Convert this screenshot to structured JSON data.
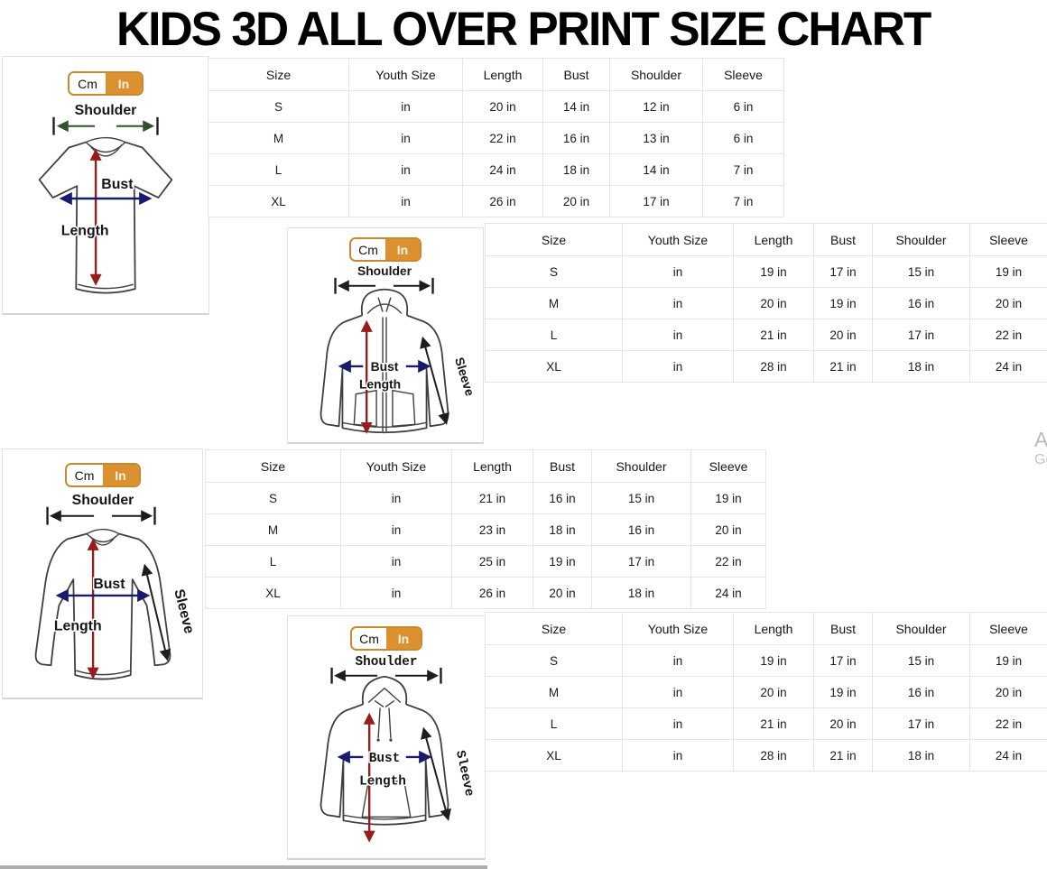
{
  "title": "KIDS 3D ALL OVER PRINT SIZE CHART",
  "unit_toggle": {
    "cm": "Cm",
    "in": "In",
    "selected": "In"
  },
  "table_headers": [
    "Size",
    "Youth Size",
    "Length",
    "Bust",
    "Shoulder",
    "Sleeve"
  ],
  "sections": [
    {
      "id": "t-shirt",
      "diagram_labels": {
        "shoulder": "Shoulder",
        "bust": "Bust",
        "length": "Length"
      },
      "rows": [
        [
          "S",
          "in",
          "20 in",
          "14 in",
          "12 in",
          "6 in"
        ],
        [
          "M",
          "in",
          "22 in",
          "16 in",
          "13 in",
          "6 in"
        ],
        [
          "L",
          "in",
          "24 in",
          "18 in",
          "14 in",
          "7 in"
        ],
        [
          "XL",
          "in",
          "26 in",
          "20 in",
          "17 in",
          "7 in"
        ]
      ]
    },
    {
      "id": "zip-hoodie",
      "diagram_labels": {
        "shoulder": "Shoulder",
        "bust": "Bust",
        "length": "Length",
        "sleeve": "Sleeve"
      },
      "rows": [
        [
          "S",
          "in",
          "19 in",
          "17 in",
          "15 in",
          "19 in"
        ],
        [
          "M",
          "in",
          "20 in",
          "19 in",
          "16 in",
          "20 in"
        ],
        [
          "L",
          "in",
          "21 in",
          "20 in",
          "17 in",
          "22 in"
        ],
        [
          "XL",
          "in",
          "28 in",
          "21 in",
          "18 in",
          "24 in"
        ]
      ]
    },
    {
      "id": "long-sleeve-shirt",
      "diagram_labels": {
        "shoulder": "Shoulder",
        "bust": "Bust",
        "length": "Length",
        "sleeve": "Sleeve"
      },
      "rows": [
        [
          "S",
          "in",
          "21 in",
          "16 in",
          "15 in",
          "19 in"
        ],
        [
          "M",
          "in",
          "23 in",
          "18 in",
          "16 in",
          "20 in"
        ],
        [
          "L",
          "in",
          "25 in",
          "19 in",
          "17 in",
          "22 in"
        ],
        [
          "XL",
          "in",
          "26 in",
          "20 in",
          "18 in",
          "24 in"
        ]
      ]
    },
    {
      "id": "hoodie",
      "diagram_labels": {
        "shoulder": "Shoulder",
        "bust": "Bust",
        "length": "Length",
        "sleeve": "Sleeve"
      },
      "rows": [
        [
          "S",
          "in",
          "19 in",
          "17 in",
          "15 in",
          "19 in"
        ],
        [
          "M",
          "in",
          "20 in",
          "19 in",
          "16 in",
          "20 in"
        ],
        [
          "L",
          "in",
          "21 in",
          "20 in",
          "17 in",
          "22 in"
        ],
        [
          "XL",
          "in",
          "28 in",
          "21 in",
          "18 in",
          "24 in"
        ]
      ]
    }
  ],
  "watermark": {
    "line1": "A",
    "line2": "Go"
  },
  "colors": {
    "accent_orange": "#db9130",
    "toggle_border": "#c9882b",
    "arrow_red": "#961d1d",
    "arrow_navy": "#1b1b6e",
    "arrow_black": "#1d1d1d",
    "arrow_green": "#33512e",
    "table_border": "#e5e5e5"
  }
}
